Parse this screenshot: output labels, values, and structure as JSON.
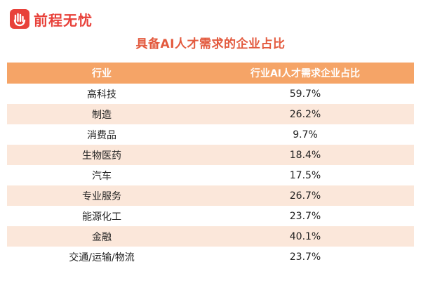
{
  "brand": {
    "name": "前程无忧",
    "logo_icon": "hand-logo-icon",
    "color": "#e8413a"
  },
  "colors": {
    "header_bg": "#f5a467",
    "stripe_bg": "#fbe7da",
    "title": "#e35a3e"
  },
  "chart_data": {
    "type": "table",
    "title": "具备AI人才需求的企业占比",
    "columns": [
      "行业",
      "行业AI人才需求企业占比"
    ],
    "rows": [
      [
        "高科技",
        "59.7%"
      ],
      [
        "制造",
        "26.2%"
      ],
      [
        "消费品",
        "9.7%"
      ],
      [
        "生物医药",
        "18.4%"
      ],
      [
        "汽车",
        "17.5%"
      ],
      [
        "专业服务",
        "26.7%"
      ],
      [
        "能源化工",
        "23.7%"
      ],
      [
        "金融",
        "40.1%"
      ],
      [
        "交通/运输/物流",
        "23.7%"
      ]
    ]
  }
}
